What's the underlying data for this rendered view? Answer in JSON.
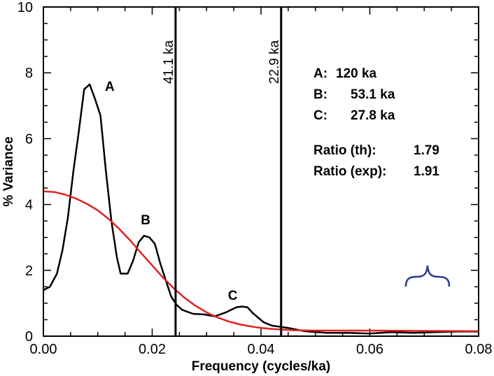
{
  "chart_data": {
    "type": "line",
    "xlabel": "Frequency (cycles/ka)",
    "ylabel": "% Variance",
    "xlim": [
      0.0,
      0.08
    ],
    "ylim": [
      0,
      10
    ],
    "xticks": [
      0.0,
      0.02,
      0.04,
      0.06,
      0.08
    ],
    "xtick_labels": [
      "0.00",
      "0.02",
      "0.04",
      "0.06",
      "0.08"
    ],
    "yticks": [
      0,
      2,
      4,
      6,
      8,
      10
    ],
    "ytick_labels": [
      "0",
      "2",
      "4",
      "6",
      "8",
      "10"
    ],
    "grid": false,
    "series": [
      {
        "color": "#000000",
        "points": [
          [
            0.0,
            1.4
          ],
          [
            0.0012,
            1.5
          ],
          [
            0.0025,
            1.9
          ],
          [
            0.0035,
            2.6
          ],
          [
            0.0045,
            3.6
          ],
          [
            0.0055,
            5.0
          ],
          [
            0.0065,
            6.2
          ],
          [
            0.0075,
            7.5
          ],
          [
            0.0085,
            7.65
          ],
          [
            0.0095,
            7.2
          ],
          [
            0.0105,
            6.7
          ],
          [
            0.0115,
            5.0
          ],
          [
            0.0125,
            3.5
          ],
          [
            0.0135,
            2.4
          ],
          [
            0.0142,
            1.9
          ],
          [
            0.0155,
            1.9
          ],
          [
            0.0165,
            2.3
          ],
          [
            0.0175,
            2.85
          ],
          [
            0.0185,
            3.05
          ],
          [
            0.0195,
            3.0
          ],
          [
            0.0205,
            2.8
          ],
          [
            0.0215,
            2.2
          ],
          [
            0.0225,
            1.7
          ],
          [
            0.0235,
            1.2
          ],
          [
            0.0245,
            0.95
          ],
          [
            0.0255,
            0.8
          ],
          [
            0.0275,
            0.68
          ],
          [
            0.0295,
            0.66
          ],
          [
            0.0315,
            0.6
          ],
          [
            0.0335,
            0.72
          ],
          [
            0.0355,
            0.88
          ],
          [
            0.0365,
            0.9
          ],
          [
            0.0375,
            0.88
          ],
          [
            0.0385,
            0.7
          ],
          [
            0.0405,
            0.42
          ],
          [
            0.042,
            0.32
          ],
          [
            0.045,
            0.25
          ],
          [
            0.048,
            0.15
          ],
          [
            0.052,
            0.1
          ],
          [
            0.056,
            0.1
          ],
          [
            0.06,
            0.08
          ],
          [
            0.064,
            0.12
          ],
          [
            0.068,
            0.1
          ],
          [
            0.072,
            0.12
          ],
          [
            0.076,
            0.14
          ],
          [
            0.08,
            0.14
          ]
        ]
      },
      {
        "color": "#e02020",
        "points": [
          [
            0.0,
            4.4
          ],
          [
            0.002,
            4.38
          ],
          [
            0.004,
            4.3
          ],
          [
            0.006,
            4.18
          ],
          [
            0.008,
            4.02
          ],
          [
            0.01,
            3.82
          ],
          [
            0.012,
            3.56
          ],
          [
            0.014,
            3.25
          ],
          [
            0.016,
            2.9
          ],
          [
            0.018,
            2.52
          ],
          [
            0.02,
            2.15
          ],
          [
            0.022,
            1.78
          ],
          [
            0.024,
            1.45
          ],
          [
            0.026,
            1.16
          ],
          [
            0.028,
            0.92
          ],
          [
            0.03,
            0.72
          ],
          [
            0.032,
            0.57
          ],
          [
            0.034,
            0.45
          ],
          [
            0.036,
            0.36
          ],
          [
            0.038,
            0.3
          ],
          [
            0.04,
            0.25
          ],
          [
            0.042,
            0.22
          ],
          [
            0.044,
            0.2
          ],
          [
            0.046,
            0.18
          ],
          [
            0.05,
            0.17
          ],
          [
            0.055,
            0.17
          ],
          [
            0.06,
            0.17
          ],
          [
            0.07,
            0.16
          ],
          [
            0.08,
            0.15
          ]
        ]
      }
    ],
    "vertical_lines": [
      {
        "x": 0.0243,
        "label": "41.1 ka"
      },
      {
        "x": 0.0437,
        "label": "22.9 ka"
      }
    ],
    "peak_labels": [
      {
        "text": "A",
        "x": 0.0122,
        "y": 7.45
      },
      {
        "text": "B",
        "x": 0.0188,
        "y": 3.4
      },
      {
        "text": "C",
        "x": 0.0348,
        "y": 1.1
      }
    ],
    "annotations": [
      [
        "A:",
        "120 ka"
      ],
      [
        "B:",
        "53.1 ka"
      ],
      [
        "C:",
        "27.8 ka"
      ],
      [
        "Ratio (th):",
        "1.79"
      ],
      [
        "Ratio (exp):",
        "1.91"
      ]
    ],
    "brace_color": "#2b3a8f"
  }
}
